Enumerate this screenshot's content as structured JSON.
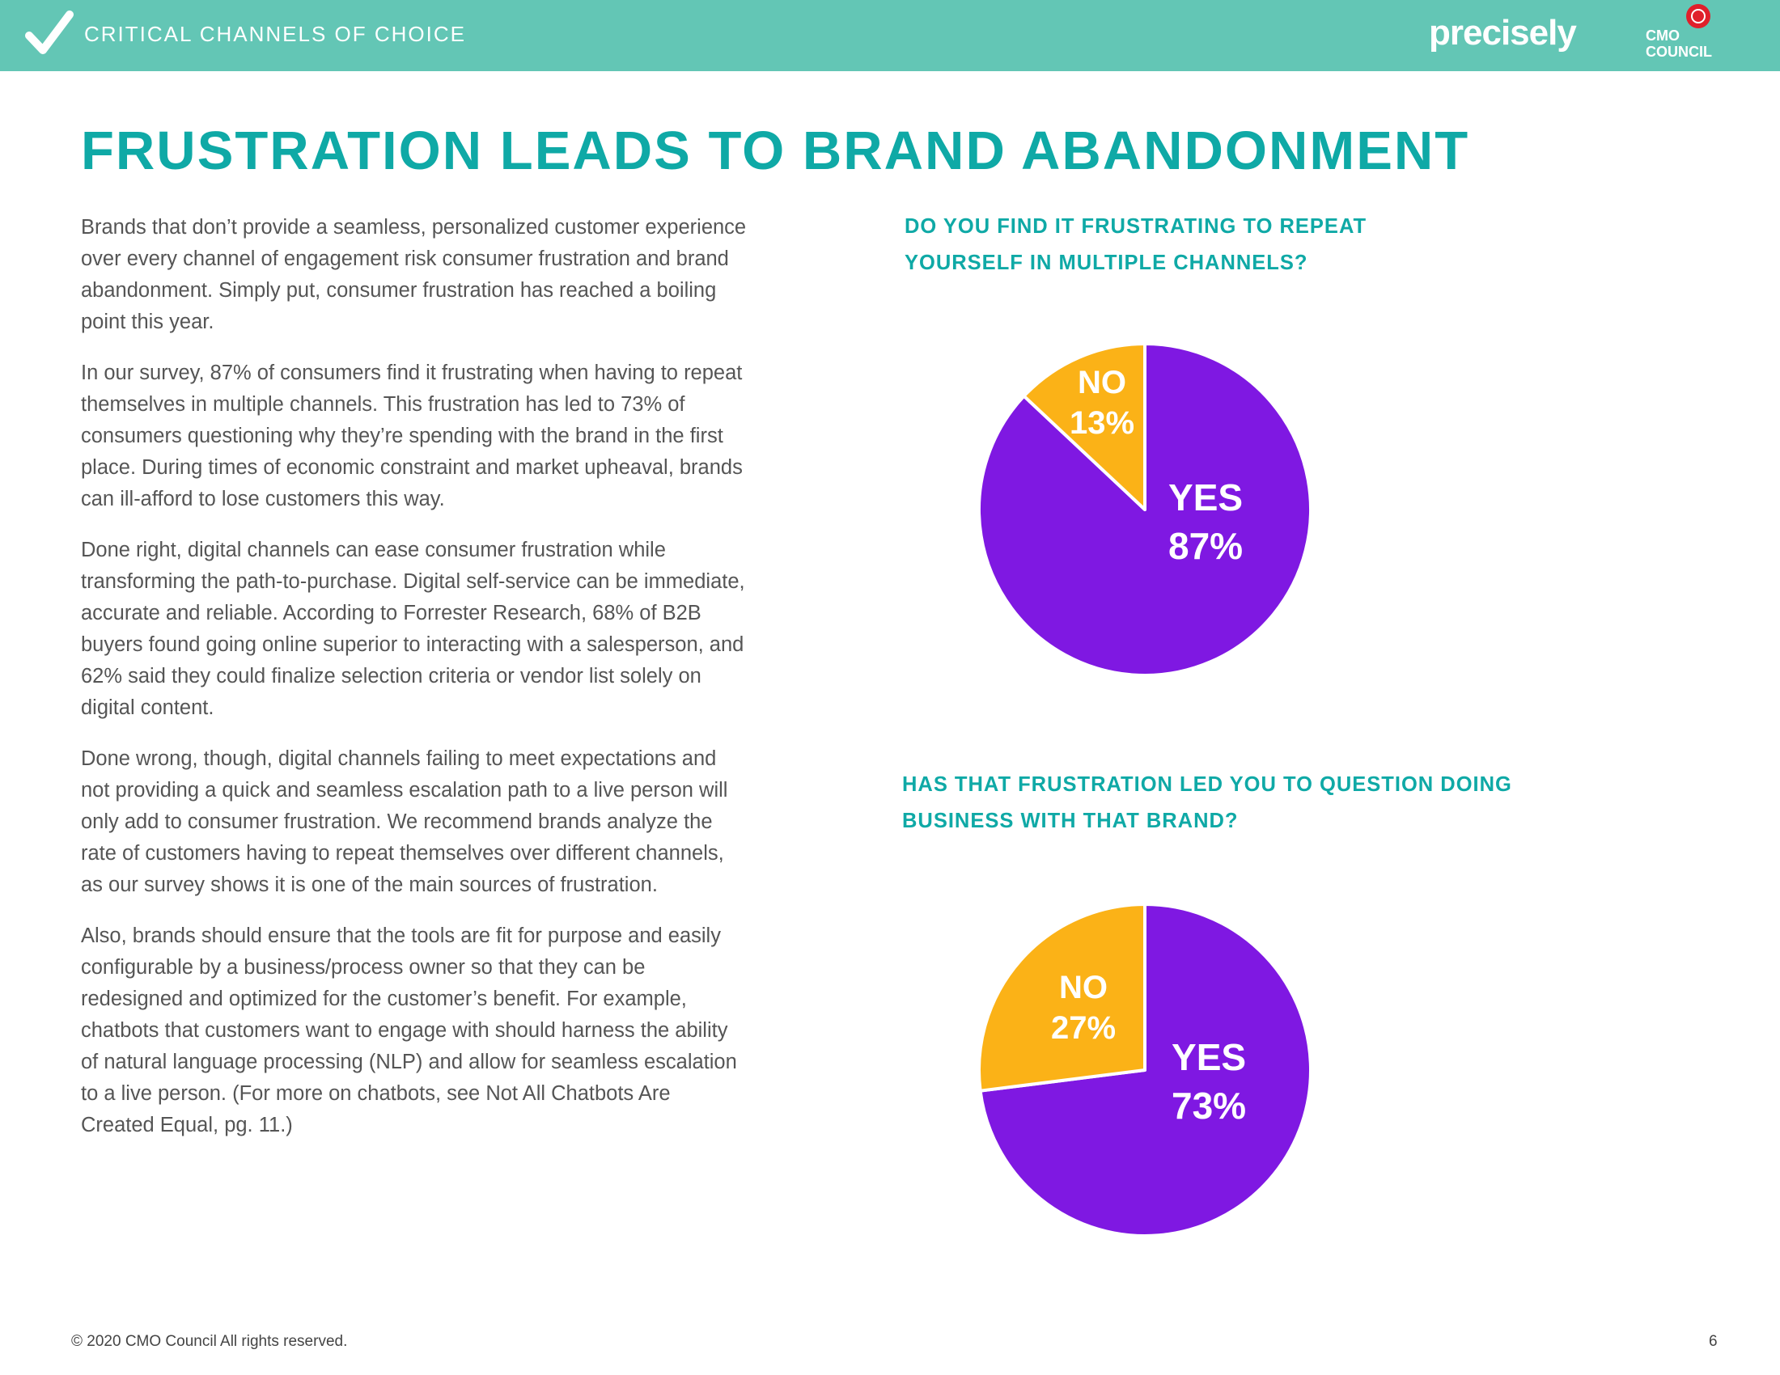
{
  "header": {
    "section_label": "CRITICAL CHANNELS OF CHOICE",
    "brand_logo": "precisely",
    "partner_logo_line1": "CMO",
    "partner_logo_line2": "COUNCIL"
  },
  "title": "FRUSTRATION LEADS TO BRAND ABANDONMENT",
  "body": {
    "paragraphs": [
      "Brands that don’t provide a seamless, personalized customer experience over every channel of engagement risk consumer frustration and brand abandonment. Simply put, consumer frustration has reached a boiling point this year.",
      "In our survey, 87% of consumers find it frustrating when having to repeat themselves in multiple channels. This frustration has led to 73% of consumers questioning why they’re spending with the brand in the first place. During times of economic constraint and market upheaval, brands can ill-afford to lose customers this way.",
      "Done right, digital channels can ease consumer frustration while transforming the path-to-purchase. Digital self-service can be immediate, accurate and reliable. According to Forrester Research, 68% of B2B buyers found going online superior to interacting with a salesperson, and 62% said they could finalize selection criteria or vendor list solely on digital content.",
      "Done wrong, though, digital channels failing to meet expectations and not providing a quick and seamless escalation path to a live person will only add to consumer frustration. We recommend brands analyze the rate of customers having to repeat themselves over different channels, as our survey shows it is one of the main sources of frustration.",
      "Also, brands should ensure that the tools are fit for purpose and easily configurable by a business/process owner so that they can be redesigned and optimized for the customer’s benefit. For example, chatbots that customers want to engage with should harness the ability of natural language processing (NLP) and allow for seamless escalation to a live person. (For more on chatbots, see Not All Chatbots Are Created Equal, pg. 11.)"
    ]
  },
  "colors": {
    "teal_header": "#63c6b5",
    "teal_text": "#0fa9a6",
    "yes_purple": "#7f18e2",
    "no_yellow": "#fbb217"
  },
  "chart_data": [
    {
      "type": "pie",
      "title": "DO YOU FIND IT FRUSTRATING TO REPEAT YOURSELF IN MULTIPLE CHANNELS?",
      "slices": [
        {
          "label": "YES",
          "value": 87,
          "value_label": "87%",
          "color": "#7f18e2"
        },
        {
          "label": "NO",
          "value": 13,
          "value_label": "13%",
          "color": "#fbb217"
        }
      ]
    },
    {
      "type": "pie",
      "title": "HAS THAT FRUSTRATION LED YOU TO QUESTION DOING BUSINESS WITH THAT BRAND?",
      "slices": [
        {
          "label": "YES",
          "value": 73,
          "value_label": "73%",
          "color": "#7f18e2"
        },
        {
          "label": "NO",
          "value": 27,
          "value_label": "27%",
          "color": "#fbb217"
        }
      ]
    }
  ],
  "footer": {
    "copyright": "© 2020 CMO Council  All rights reserved.",
    "page_number": "6"
  }
}
